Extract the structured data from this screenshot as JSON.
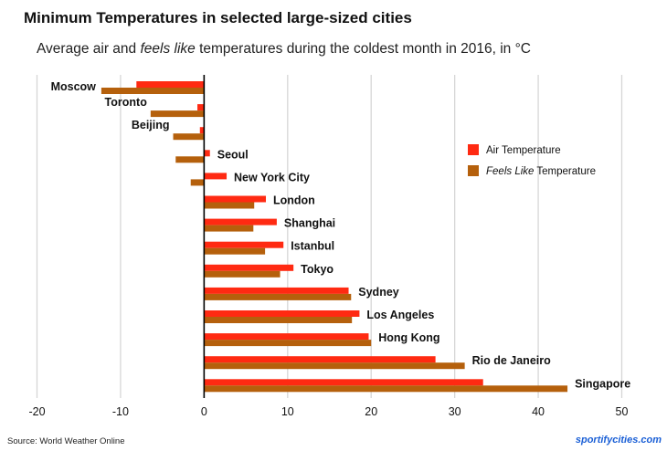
{
  "title": "Minimum Temperatures in selected large-sized cities",
  "subtitle_pre": "Average air and ",
  "subtitle_em": "feels like",
  "subtitle_post": " temperatures during the coldest month in 2016, in °C",
  "source": "Source:  World Weather Online",
  "brand": "sportifycities.com",
  "chart_data": {
    "type": "bar",
    "orientation": "horizontal",
    "categories": [
      "Moscow",
      "Toronto",
      "Beijing",
      "Seoul",
      "New York City",
      "London",
      "Shanghai",
      "Istanbul",
      "Tokyo",
      "Sydney",
      "Los Angeles",
      "Hong Kong",
      "Rio de Janeiro",
      "Singapore"
    ],
    "series": [
      {
        "name": "Air Temperature",
        "color": "#ff2a12",
        "values": [
          -8.1,
          -0.8,
          -0.5,
          0.7,
          2.7,
          7.4,
          8.7,
          9.5,
          10.7,
          17.3,
          18.6,
          19.7,
          27.7,
          33.4
        ]
      },
      {
        "name": "Feels Like Temperature",
        "name_em": "Feels Like",
        "name_rest": " Temperature",
        "color": "#b5600c",
        "values": [
          -12.3,
          -6.4,
          -3.7,
          -3.4,
          -1.6,
          6.0,
          5.9,
          7.3,
          9.1,
          17.6,
          17.7,
          20.0,
          31.2,
          43.5
        ]
      }
    ],
    "xlim": [
      -20,
      50
    ],
    "xticks": [
      "-20",
      "-10",
      "0",
      "10",
      "20",
      "30",
      "40",
      "50"
    ],
    "grid": true,
    "legend": "right"
  }
}
